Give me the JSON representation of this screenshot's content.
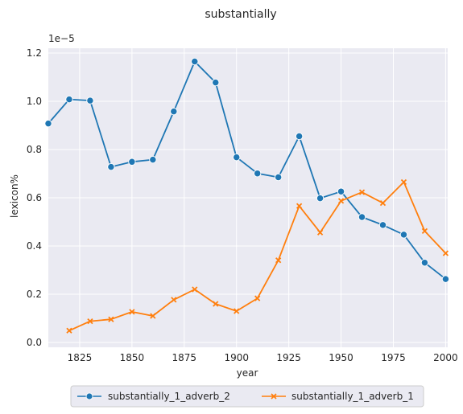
{
  "chart_data": {
    "type": "line",
    "title": "substantially",
    "xlabel": "year",
    "ylabel": "lexicon%",
    "y_scale_note": "1e−5",
    "xlim": [
      1810,
      2001
    ],
    "ylim": [
      -2e-07,
      1.22e-05
    ],
    "xticks": [
      1825,
      1850,
      1875,
      1900,
      1925,
      1950,
      1975,
      2000
    ],
    "yticks": [
      0.0,
      0.2,
      0.4,
      0.6,
      0.8,
      1.0,
      1.2
    ],
    "grid": true,
    "background": "#eaeaf2",
    "legend_position": "bottom-center",
    "series": [
      {
        "name": "substantially_1_adverb_2",
        "color": "#1f77b4",
        "marker": "circle",
        "x": [
          1810,
          1820,
          1830,
          1840,
          1850,
          1860,
          1870,
          1880,
          1890,
          1900,
          1910,
          1920,
          1930,
          1940,
          1950,
          1960,
          1970,
          1980,
          1990,
          2000
        ],
        "values": [
          9.08e-06,
          1.008e-05,
          1.003e-05,
          7.28e-06,
          7.49e-06,
          7.58e-06,
          9.58e-06,
          1.165e-05,
          1.078e-05,
          7.68e-06,
          7.01e-06,
          6.85e-06,
          8.55e-06,
          5.98e-06,
          6.26e-06,
          5.2e-06,
          4.87e-06,
          4.47e-06,
          3.31e-06,
          2.63e-06
        ]
      },
      {
        "name": "substantially_1_adverb_1",
        "color": "#ff7f0e",
        "marker": "x",
        "x": [
          1820,
          1830,
          1840,
          1850,
          1860,
          1870,
          1880,
          1890,
          1900,
          1910,
          1920,
          1930,
          1940,
          1950,
          1960,
          1970,
          1980,
          1990,
          2000
        ],
        "values": [
          4.9e-07,
          8.8e-07,
          9.6e-07,
          1.27e-06,
          1.1e-06,
          1.77e-06,
          2.2e-06,
          1.6e-06,
          1.3e-06,
          1.83e-06,
          3.41e-06,
          5.66e-06,
          4.56e-06,
          5.87e-06,
          6.23e-06,
          5.78e-06,
          6.65e-06,
          4.62e-06,
          3.7e-06
        ]
      }
    ]
  }
}
